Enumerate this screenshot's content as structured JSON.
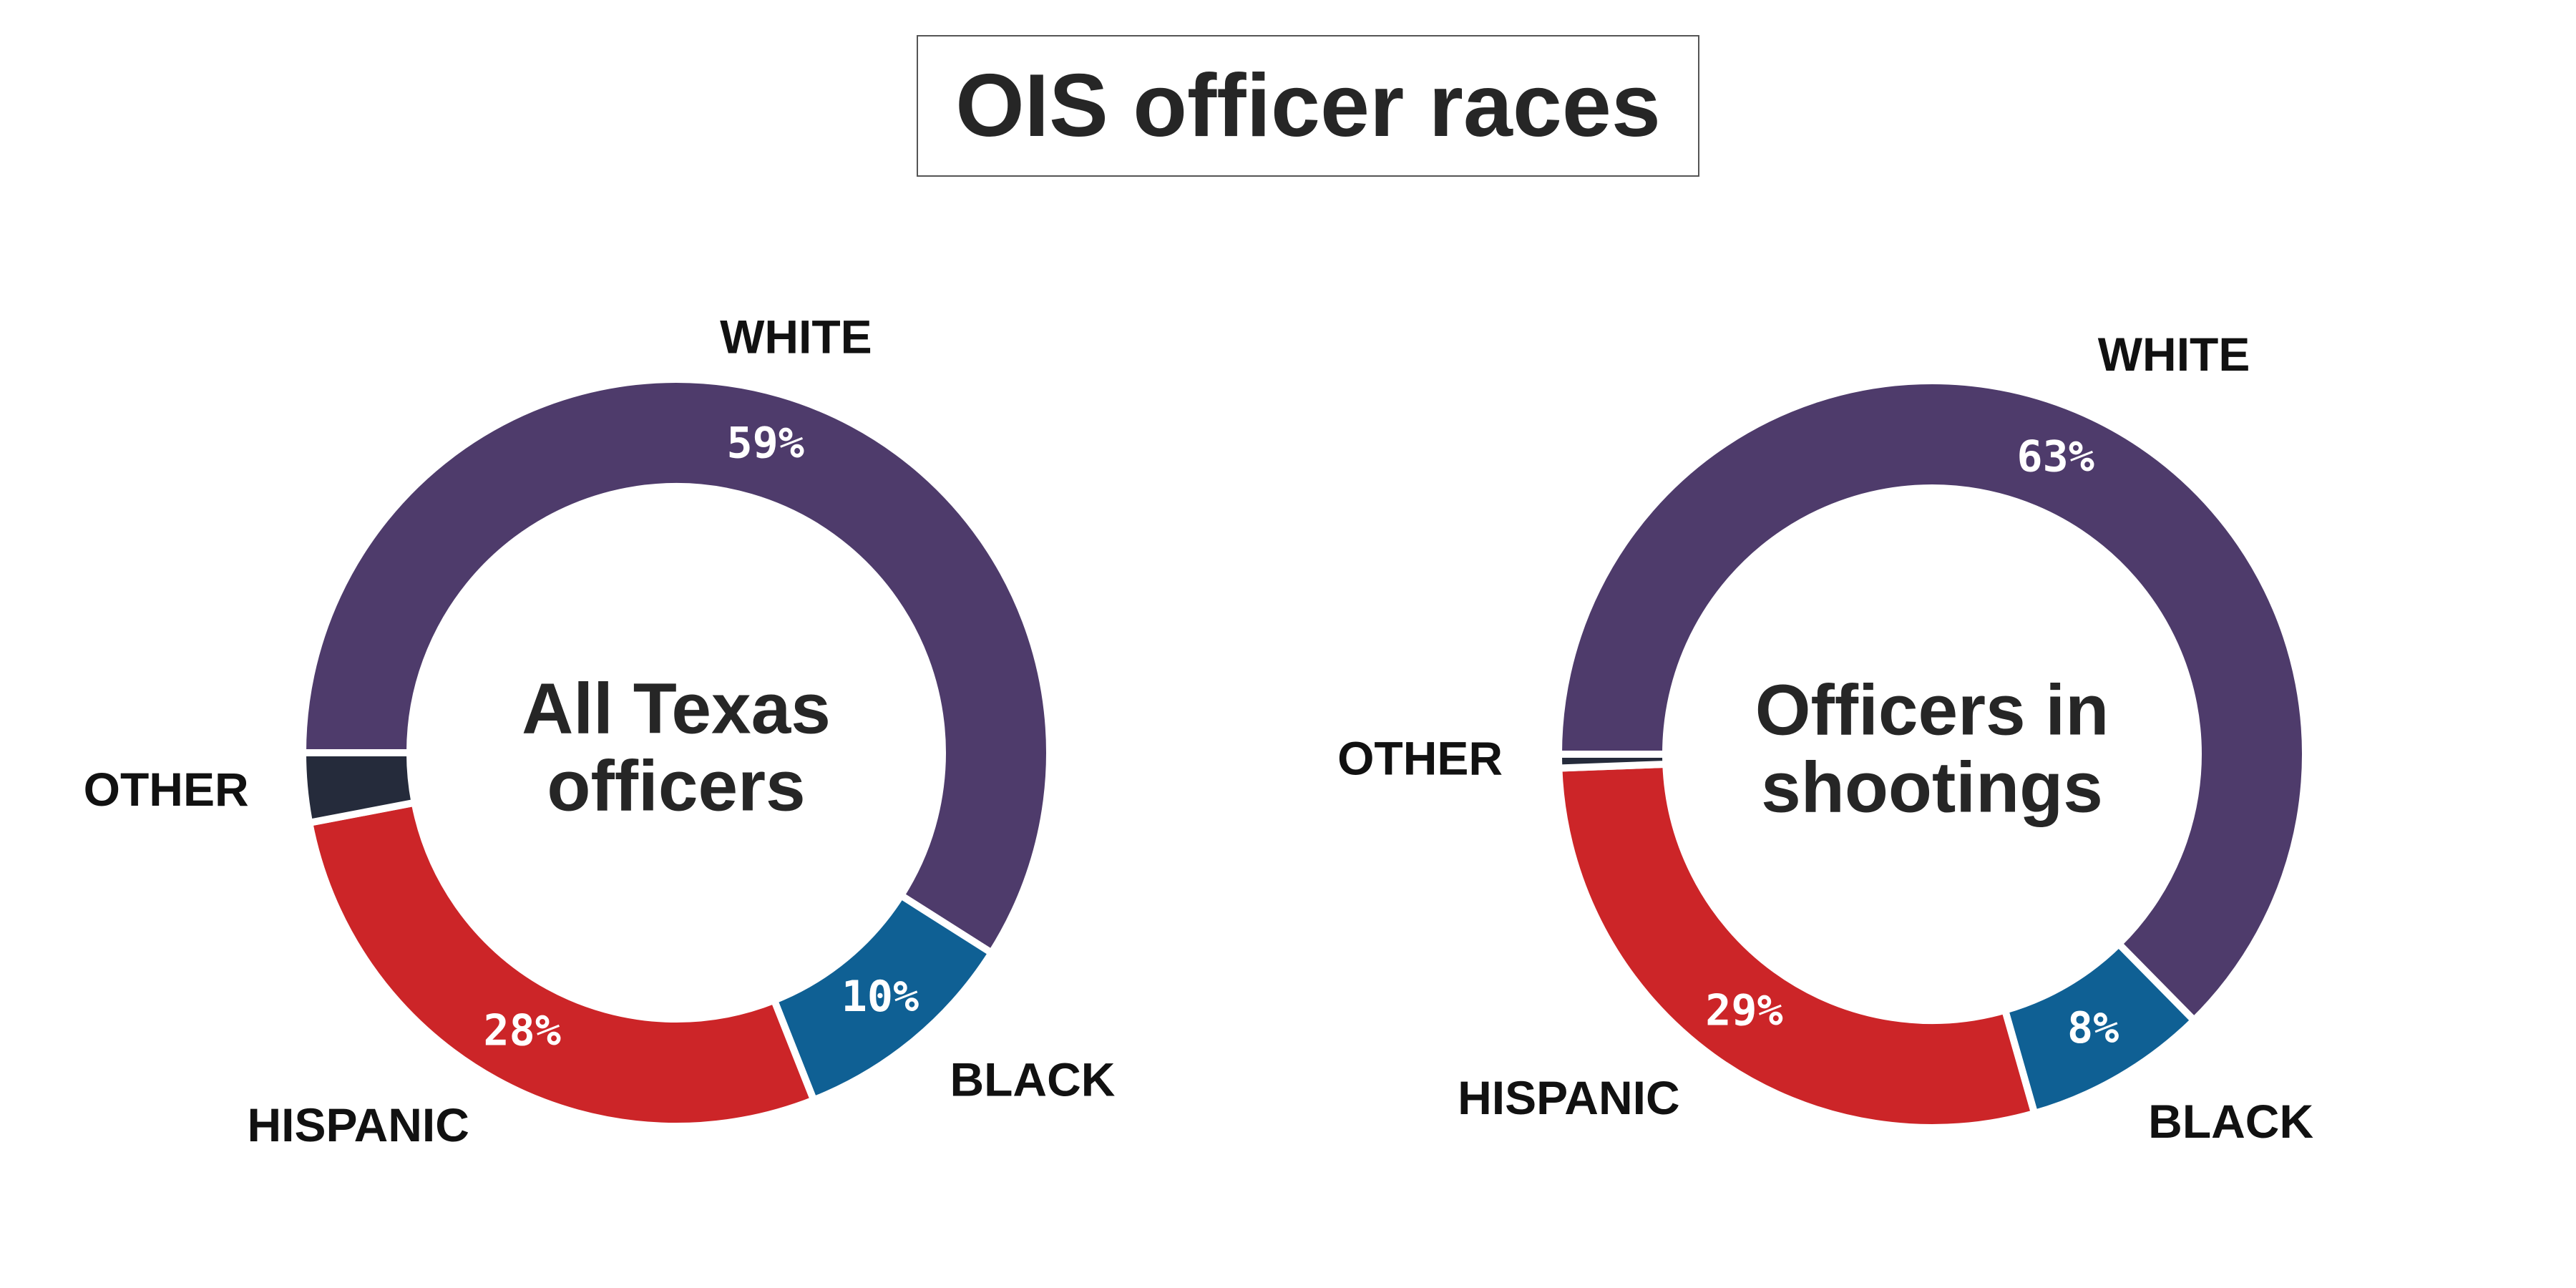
{
  "title": "OIS officer races",
  "chart_data": [
    {
      "type": "pie",
      "center_label": [
        "All Texas",
        "officers"
      ],
      "categories": [
        "WHITE",
        "BLACK",
        "HISPANIC",
        "OTHER"
      ],
      "values": [
        59,
        10,
        28,
        3
      ],
      "value_labels": [
        "59%",
        "10%",
        "28%",
        ""
      ],
      "colors": [
        "#4e3b6b",
        "#0f6094",
        "#cc2528",
        "#252b3b"
      ]
    },
    {
      "type": "pie",
      "center_label": [
        "Officers in",
        "shootings"
      ],
      "categories": [
        "WHITE",
        "BLACK",
        "HISPANIC",
        "OTHER"
      ],
      "values": [
        63,
        8,
        29,
        0.6
      ],
      "value_labels": [
        "63%",
        "8%",
        "29%",
        ""
      ],
      "colors": [
        "#4e3b6b",
        "#0f6094",
        "#cc2528",
        "#252b3b"
      ]
    }
  ]
}
